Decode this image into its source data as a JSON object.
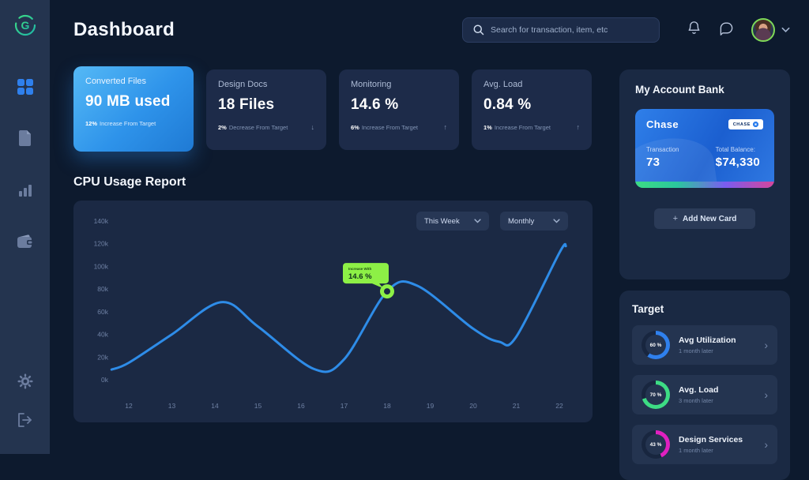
{
  "header": {
    "title": "Dashboard",
    "search_placeholder": "Search for transaction, item, etc"
  },
  "sidebar": {
    "items": [
      {
        "name": "logo"
      },
      {
        "name": "dashboard",
        "active": true
      },
      {
        "name": "documents"
      },
      {
        "name": "analytics"
      },
      {
        "name": "wallet"
      },
      {
        "name": "settings"
      },
      {
        "name": "logout"
      }
    ]
  },
  "stat_cards": [
    {
      "label": "Converted Files",
      "value": "90 MB used",
      "note_strong": "12%",
      "note_text": "Increase From Target",
      "trend": "",
      "highlighted": true
    },
    {
      "label": "Design Docs",
      "value": "18 Files",
      "note_strong": "2%",
      "note_text": "Decrease From Target",
      "trend": "↓",
      "highlighted": false
    },
    {
      "label": "Monitoring",
      "value": "14.6 %",
      "note_strong": "6%",
      "note_text": "Increase From Target",
      "trend": "↑",
      "highlighted": false
    },
    {
      "label": "Avg. Load",
      "value": "0.84 %",
      "note_strong": "1%",
      "note_text": "Increase From Target",
      "trend": "↑",
      "highlighted": false
    }
  ],
  "cpu_report": {
    "title": "CPU Usage Report",
    "filter_week": "This Week",
    "filter_month": "Monthly"
  },
  "chart_data": {
    "type": "line",
    "title": "CPU Usage Report",
    "x": [
      12,
      13,
      14,
      15,
      16,
      17,
      18,
      19,
      20,
      21,
      22
    ],
    "values_thousands": [
      15,
      40,
      65,
      47,
      12,
      18,
      78,
      75,
      45,
      38,
      112
    ],
    "curve_samples": [
      [
        11.6,
        9
      ],
      [
        12,
        15
      ],
      [
        13,
        40
      ],
      [
        14.15,
        68.5
      ],
      [
        15,
        47
      ],
      [
        16.3,
        9.5
      ],
      [
        17,
        18
      ],
      [
        18,
        78
      ],
      [
        18.7,
        83
      ],
      [
        20,
        45
      ],
      [
        20.6,
        33.5
      ],
      [
        21,
        38
      ],
      [
        22,
        112
      ],
      [
        22.15,
        118
      ]
    ],
    "ylim_thousands": [
      0,
      140
    ],
    "ytick_labels": [
      "140k",
      "120k",
      "100k",
      "80k",
      "60k",
      "40k",
      "20k",
      "0k"
    ],
    "xlabel": "",
    "ylabel": "",
    "grid": false,
    "legend": false,
    "line_color": "#2e8ce8",
    "highlight": {
      "x": 18,
      "point_value_thousands": 78,
      "tooltip_label": "Increase With",
      "tooltip_value": "14.6 %",
      "marker_color": "#8df046"
    }
  },
  "bank": {
    "title": "My Account Bank",
    "card_name": "Chase",
    "badge": "CHASE",
    "transaction_label": "Transaction",
    "transaction_value": "73",
    "balance_label": "Total Balance:",
    "balance_value": "$74,330",
    "add_card_label": "Add New Card"
  },
  "target": {
    "title": "Target",
    "items": [
      {
        "percent": "60 %",
        "value": 60,
        "title": "Avg Utilization",
        "subtitle": "1 month later",
        "color": "#2f80ed"
      },
      {
        "percent": "70 %",
        "value": 70,
        "title": "Avg. Load",
        "subtitle": "3 month later",
        "color": "#3ddc84"
      },
      {
        "percent": "43 %",
        "value": 43,
        "title": "Design Services",
        "subtitle": "1 month later",
        "color": "#e020c0"
      }
    ]
  },
  "colors": {
    "background": "#0d1a2e",
    "sidebar": "#24344f",
    "panel": "#1b2944",
    "accent_blue": "#2f80ed",
    "lime": "#8df046"
  }
}
